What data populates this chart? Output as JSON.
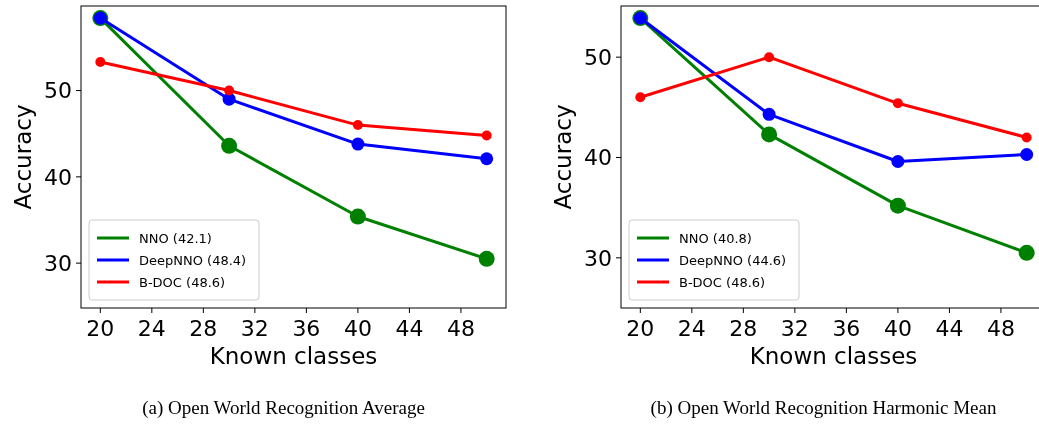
{
  "chart_data": [
    {
      "type": "line",
      "title": "(a) Open World Recognition Average",
      "xlabel": "Known classes",
      "ylabel": "Accuracy",
      "x": [
        20,
        30,
        40,
        50
      ],
      "xlim": [
        18.5,
        51.5
      ],
      "xticks": [
        20,
        24,
        28,
        32,
        36,
        40,
        44,
        48
      ],
      "ylim": [
        24.8,
        59.8
      ],
      "yticks": [
        30,
        40,
        50
      ],
      "marker": "circle",
      "legend": "bottom left",
      "grid": false,
      "series": [
        {
          "name": "NNO (42.1)",
          "color": "#008000",
          "values": [
            58.4,
            43.6,
            35.4,
            30.5
          ]
        },
        {
          "name": "DeepNNO (48.4)",
          "color": "#0000ff",
          "values": [
            58.4,
            49.0,
            43.8,
            42.1
          ]
        },
        {
          "name": "B-DOC (48.6)",
          "color": "#ff0000",
          "values": [
            53.3,
            50.0,
            46.0,
            44.8
          ]
        }
      ]
    },
    {
      "type": "line",
      "title": "(b) Open World Recognition Harmonic Mean",
      "xlabel": "Known classes",
      "ylabel": "Accuracy",
      "x": [
        20,
        30,
        40,
        50
      ],
      "xlim": [
        18.5,
        51.5
      ],
      "xticks": [
        20,
        24,
        28,
        32,
        36,
        40,
        44,
        48
      ],
      "ylim": [
        25.0,
        55.1
      ],
      "yticks": [
        30,
        40,
        50
      ],
      "marker": "circle",
      "legend": "bottom left",
      "grid": false,
      "series": [
        {
          "name": "NNO (40.8)",
          "color": "#008000",
          "values": [
            53.9,
            42.3,
            35.2,
            30.5
          ]
        },
        {
          "name": "DeepNNO (44.6)",
          "color": "#0000ff",
          "values": [
            53.9,
            44.3,
            39.6,
            40.3
          ]
        },
        {
          "name": "B-DOC (48.6)",
          "color": "#ff0000",
          "values": [
            46.0,
            50.0,
            45.4,
            42.0
          ]
        }
      ]
    }
  ]
}
